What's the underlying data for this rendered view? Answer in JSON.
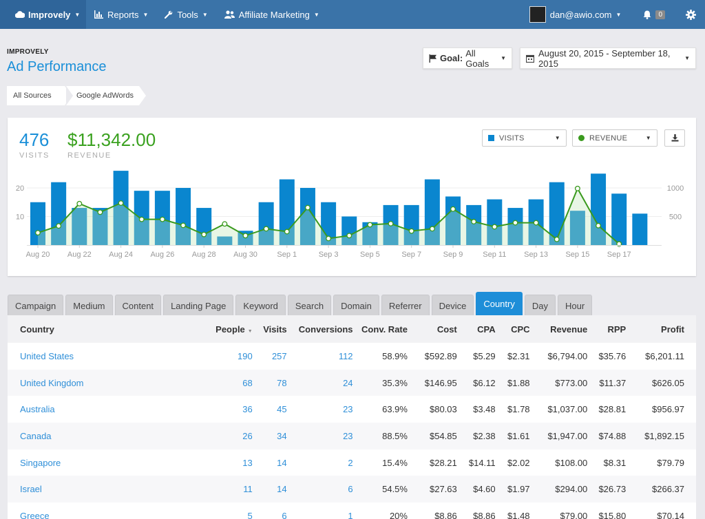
{
  "nav": {
    "brand": "Improvely",
    "items": [
      {
        "label": "Reports",
        "icon": "bar-chart-icon"
      },
      {
        "label": "Tools",
        "icon": "wrench-icon"
      },
      {
        "label": "Affiliate Marketing",
        "icon": "users-icon"
      }
    ],
    "user_email": "dan@awio.com",
    "notification_count": "0"
  },
  "header": {
    "brand_small": "IMPROVELY",
    "title": "Ad Performance",
    "goal_label": "Goal:",
    "goal_value": "All Goals",
    "date_range": "August 20, 2015 - September 18, 2015"
  },
  "breadcrumb": [
    "All Sources",
    "Google AdWords"
  ],
  "kpis": {
    "visits_value": "476",
    "visits_label": "VISITS",
    "revenue_value": "$11,342.00",
    "revenue_label": "REVENUE"
  },
  "chart_controls": {
    "left_metric": "VISITS",
    "right_metric": "REVENUE"
  },
  "colors": {
    "visits_bar": "#0a86cf",
    "revenue_line": "#3a9a1e",
    "link": "#2f8fd8",
    "revenue_text": "#3aa11f"
  },
  "chart_data": {
    "type": "bar",
    "categories": [
      "Aug 20",
      "Aug 21",
      "Aug 22",
      "Aug 23",
      "Aug 24",
      "Aug 25",
      "Aug 26",
      "Aug 27",
      "Aug 28",
      "Aug 29",
      "Aug 30",
      "Aug 31",
      "Sep 1",
      "Sep 2",
      "Sep 3",
      "Sep 4",
      "Sep 5",
      "Sep 6",
      "Sep 7",
      "Sep 8",
      "Sep 9",
      "Sep 10",
      "Sep 11",
      "Sep 12",
      "Sep 13",
      "Sep 14",
      "Sep 15",
      "Sep 16",
      "Sep 17",
      "Sep 18"
    ],
    "x_tick_labels": [
      "Aug 20",
      "Aug 22",
      "Aug 24",
      "Aug 26",
      "Aug 28",
      "Aug 30",
      "Sep 1",
      "Sep 3",
      "Sep 5",
      "Sep 7",
      "Sep 9",
      "Sep 11",
      "Sep 13",
      "Sep 15",
      "Sep 17"
    ],
    "series": [
      {
        "name": "VISITS",
        "type": "bar",
        "axis": "left",
        "values": [
          15,
          22,
          13,
          13,
          26,
          19,
          19,
          20,
          13,
          3,
          5,
          15,
          23,
          20,
          15,
          10,
          8,
          14,
          14,
          23,
          17,
          14,
          16,
          13,
          16,
          22,
          12,
          25,
          18,
          11
        ]
      },
      {
        "name": "REVENUE",
        "type": "line",
        "axis": "right",
        "values": [
          215,
          335,
          725,
          575,
          735,
          450,
          450,
          345,
          185,
          370,
          165,
          285,
          235,
          655,
          115,
          165,
          355,
          375,
          245,
          285,
          630,
          410,
          320,
          390,
          390,
          100,
          990,
          340,
          20,
          null
        ]
      }
    ],
    "y_left": {
      "ticks": [
        10,
        20
      ],
      "ylim": [
        0,
        25
      ]
    },
    "y_right": {
      "ticks": [
        500,
        1000
      ],
      "ylim": [
        0,
        1250
      ]
    },
    "grid": true
  },
  "tabs": [
    "Campaign",
    "Medium",
    "Content",
    "Landing Page",
    "Keyword",
    "Search",
    "Domain",
    "Referrer",
    "Device",
    "Country",
    "Day",
    "Hour"
  ],
  "active_tab": "Country",
  "table": {
    "columns": [
      "Country",
      "People",
      "Visits",
      "Conversions",
      "Conv. Rate",
      "Cost",
      "CPA",
      "CPC",
      "Revenue",
      "RPP",
      "Profit"
    ],
    "rows": [
      [
        "United States",
        "190",
        "257",
        "112",
        "58.9%",
        "$592.89",
        "$5.29",
        "$2.31",
        "$6,794.00",
        "$35.76",
        "$6,201.11"
      ],
      [
        "United Kingdom",
        "68",
        "78",
        "24",
        "35.3%",
        "$146.95",
        "$6.12",
        "$1.88",
        "$773.00",
        "$11.37",
        "$626.05"
      ],
      [
        "Australia",
        "36",
        "45",
        "23",
        "63.9%",
        "$80.03",
        "$3.48",
        "$1.78",
        "$1,037.00",
        "$28.81",
        "$956.97"
      ],
      [
        "Canada",
        "26",
        "34",
        "23",
        "88.5%",
        "$54.85",
        "$2.38",
        "$1.61",
        "$1,947.00",
        "$74.88",
        "$1,892.15"
      ],
      [
        "Singapore",
        "13",
        "14",
        "2",
        "15.4%",
        "$28.21",
        "$14.11",
        "$2.02",
        "$108.00",
        "$8.31",
        "$79.79"
      ],
      [
        "Israel",
        "11",
        "14",
        "6",
        "54.5%",
        "$27.63",
        "$4.60",
        "$1.97",
        "$294.00",
        "$26.73",
        "$266.37"
      ],
      [
        "Greece",
        "5",
        "6",
        "1",
        "20%",
        "$8.86",
        "$8.86",
        "$1.48",
        "$79.00",
        "$15.80",
        "$70.14"
      ]
    ]
  }
}
